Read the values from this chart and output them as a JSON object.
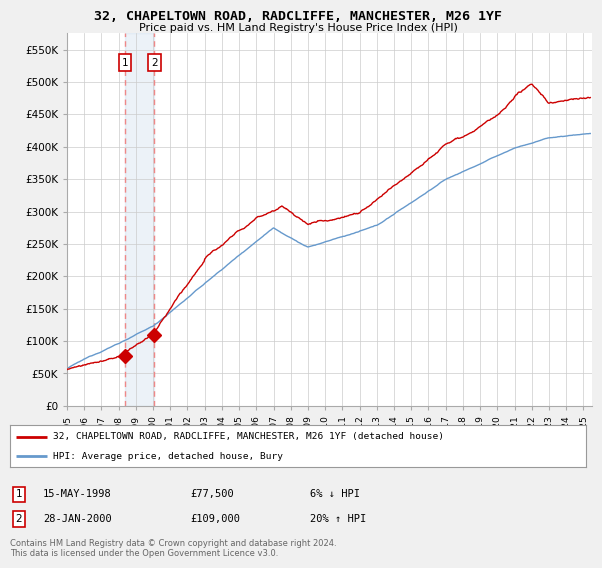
{
  "title": "32, CHAPELTOWN ROAD, RADCLIFFE, MANCHESTER, M26 1YF",
  "subtitle": "Price paid vs. HM Land Registry's House Price Index (HPI)",
  "legend_line1": "32, CHAPELTOWN ROAD, RADCLIFFE, MANCHESTER, M26 1YF (detached house)",
  "legend_line2": "HPI: Average price, detached house, Bury",
  "footer": "Contains HM Land Registry data © Crown copyright and database right 2024.\nThis data is licensed under the Open Government Licence v3.0.",
  "transaction1_date": "15-MAY-1998",
  "transaction1_price": "£77,500",
  "transaction1_hpi": "6% ↓ HPI",
  "transaction2_date": "28-JAN-2000",
  "transaction2_price": "£109,000",
  "transaction2_hpi": "20% ↑ HPI",
  "price_color": "#cc0000",
  "hpi_color": "#6699cc",
  "transaction1_x": 1998.37,
  "transaction1_y": 77500,
  "transaction2_x": 2000.08,
  "transaction2_y": 109000,
  "xlim": [
    1995.0,
    2025.5
  ],
  "ylim": [
    0,
    575000
  ],
  "yticks": [
    0,
    50000,
    100000,
    150000,
    200000,
    250000,
    300000,
    350000,
    400000,
    450000,
    500000,
    550000
  ],
  "background_color": "#f0f0f0",
  "plot_bg_color": "#ffffff",
  "grid_color": "#cccccc"
}
